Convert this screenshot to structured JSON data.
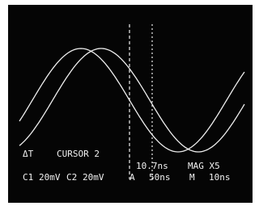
{
  "readouts": {
    "delta_t": "ΔT",
    "cursor": "CURSOR 2",
    "time": "10.7ns",
    "mag": "MAG X5",
    "channels": [
      {
        "name": "C1",
        "scale": "20mV"
      },
      {
        "name": "C2",
        "scale": "20mV"
      }
    ],
    "a_label": "A",
    "a_time": "50ns",
    "m_label": "M",
    "m_time": "10ns"
  }
}
